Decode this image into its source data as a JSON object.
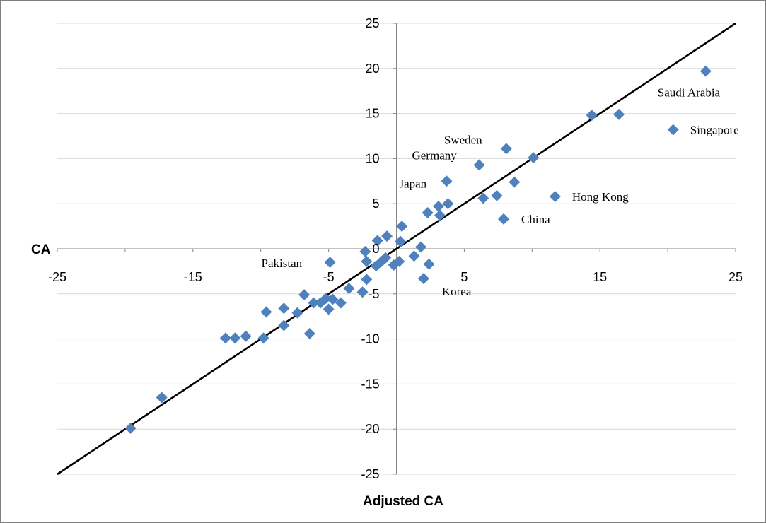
{
  "chart_data": {
    "type": "scatter",
    "xlabel": "Adjusted CA",
    "ylabel": "CA",
    "xlim": [
      -25,
      25
    ],
    "ylim": [
      -25,
      25
    ],
    "x_ticks": [
      -25,
      -15,
      -5,
      5,
      15,
      25
    ],
    "y_ticks": [
      25,
      20,
      15,
      10,
      5,
      0,
      -5,
      -10,
      -15,
      -20,
      -25
    ],
    "grid": "horizontal",
    "legend": "none",
    "marker": "diamond",
    "marker_color": "#4f81bd",
    "reference_line": {
      "from": [
        -25,
        -25
      ],
      "to": [
        25,
        25
      ],
      "color": "#000000"
    },
    "points": [
      {
        "x": 22.8,
        "y": 19.7,
        "label": "Saudi Arabia"
      },
      {
        "x": 20.4,
        "y": 13.2,
        "label": "Singapore"
      },
      {
        "x": 16.4,
        "y": 14.9
      },
      {
        "x": 14.4,
        "y": 14.8
      },
      {
        "x": 11.7,
        "y": 5.8,
        "label": "Hong Kong"
      },
      {
        "x": 10.1,
        "y": 10.1
      },
      {
        "x": 8.1,
        "y": 11.1,
        "label": "Sweden"
      },
      {
        "x": 8.7,
        "y": 7.4
      },
      {
        "x": 7.9,
        "y": 3.3,
        "label": "China"
      },
      {
        "x": 7.4,
        "y": 5.9
      },
      {
        "x": 6.4,
        "y": 5.6
      },
      {
        "x": 6.1,
        "y": 9.3,
        "label": "Germany"
      },
      {
        "x": 3.7,
        "y": 7.5,
        "label": "Japan"
      },
      {
        "x": 3.8,
        "y": 5.0
      },
      {
        "x": 3.1,
        "y": 4.7
      },
      {
        "x": 3.2,
        "y": 3.7
      },
      {
        "x": 2.3,
        "y": 4.0
      },
      {
        "x": 2.4,
        "y": -1.7
      },
      {
        "x": 2.0,
        "y": -3.3,
        "label": "Korea"
      },
      {
        "x": 1.8,
        "y": 0.2
      },
      {
        "x": 1.3,
        "y": -0.8
      },
      {
        "x": 0.4,
        "y": 2.5
      },
      {
        "x": 0.3,
        "y": 0.8
      },
      {
        "x": 0.2,
        "y": -1.4
      },
      {
        "x": -0.2,
        "y": -1.8
      },
      {
        "x": -0.7,
        "y": 1.4
      },
      {
        "x": -1.4,
        "y": 0.9
      },
      {
        "x": -0.8,
        "y": -1.0
      },
      {
        "x": -1.1,
        "y": -1.4
      },
      {
        "x": -1.5,
        "y": -1.9
      },
      {
        "x": -2.3,
        "y": -0.3
      },
      {
        "x": -2.2,
        "y": -1.4
      },
      {
        "x": -2.2,
        "y": -3.4
      },
      {
        "x": -2.5,
        "y": -4.8
      },
      {
        "x": -3.5,
        "y": -4.4
      },
      {
        "x": -4.9,
        "y": -1.5,
        "label": "Pakistan"
      },
      {
        "x": -4.1,
        "y": -6.0
      },
      {
        "x": -4.7,
        "y": -5.6
      },
      {
        "x": -5.0,
        "y": -6.7
      },
      {
        "x": -5.2,
        "y": -5.5
      },
      {
        "x": -5.6,
        "y": -6.0
      },
      {
        "x": -6.1,
        "y": -6.0
      },
      {
        "x": -6.8,
        "y": -5.1
      },
      {
        "x": -6.4,
        "y": -9.4
      },
      {
        "x": -7.3,
        "y": -7.1
      },
      {
        "x": -8.3,
        "y": -6.6
      },
      {
        "x": -8.3,
        "y": -8.5
      },
      {
        "x": -9.6,
        "y": -7.0
      },
      {
        "x": -9.8,
        "y": -9.9
      },
      {
        "x": -11.1,
        "y": -9.7
      },
      {
        "x": -11.9,
        "y": -9.9
      },
      {
        "x": -12.6,
        "y": -9.9
      },
      {
        "x": -17.3,
        "y": -16.5
      },
      {
        "x": -19.6,
        "y": -19.9
      }
    ]
  }
}
